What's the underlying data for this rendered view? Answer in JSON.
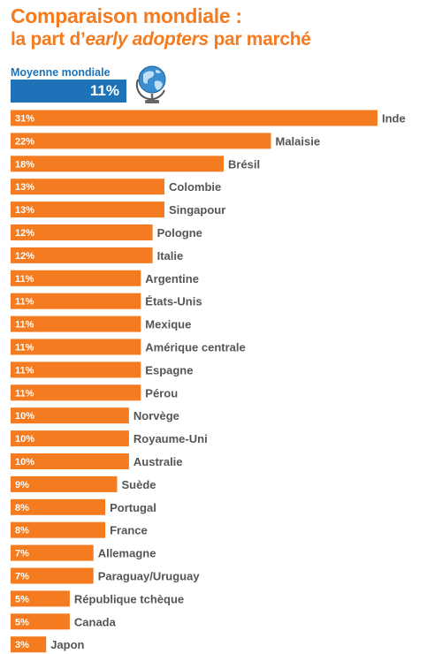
{
  "header": {
    "title": "Comparaison mondiale :",
    "subtitle_pre": "la part d’",
    "subtitle_em": "early adopters",
    "subtitle_post": " par marché"
  },
  "average": {
    "label": "Moyenne mondiale",
    "value_label": "11%",
    "icon": "globe-icon"
  },
  "colors": {
    "bar": "#f47b20",
    "accent": "#1e73b8"
  },
  "chart_data": {
    "type": "bar",
    "orientation": "horizontal",
    "categories": [
      "Inde",
      "Malaisie",
      "Brésil",
      "Colombie",
      "Singapour",
      "Pologne",
      "Italie",
      "Argentine",
      "États-Unis",
      "Mexique",
      "Amérique centrale",
      "Espagne",
      "Pérou",
      "Norvège",
      "Royaume-Uni",
      "Australie",
      "Suède",
      "Portugal",
      "France",
      "Allemagne",
      "Paraguay/Uruguay",
      "République tchèque",
      "Canada",
      "Japon"
    ],
    "values": [
      31,
      22,
      18,
      13,
      13,
      12,
      12,
      11,
      11,
      11,
      11,
      11,
      11,
      10,
      10,
      10,
      9,
      8,
      8,
      7,
      7,
      5,
      5,
      3
    ],
    "value_labels": [
      "31%",
      "22%",
      "18%",
      "13%",
      "13%",
      "12%",
      "12%",
      "11%",
      "11%",
      "11%",
      "11%",
      "11%",
      "11%",
      "10%",
      "10%",
      "10%",
      "9%",
      "8%",
      "8%",
      "7%",
      "7%",
      "5%",
      "5%",
      "3%"
    ],
    "xlim": [
      0,
      31
    ],
    "grid": false,
    "legend": "none"
  }
}
